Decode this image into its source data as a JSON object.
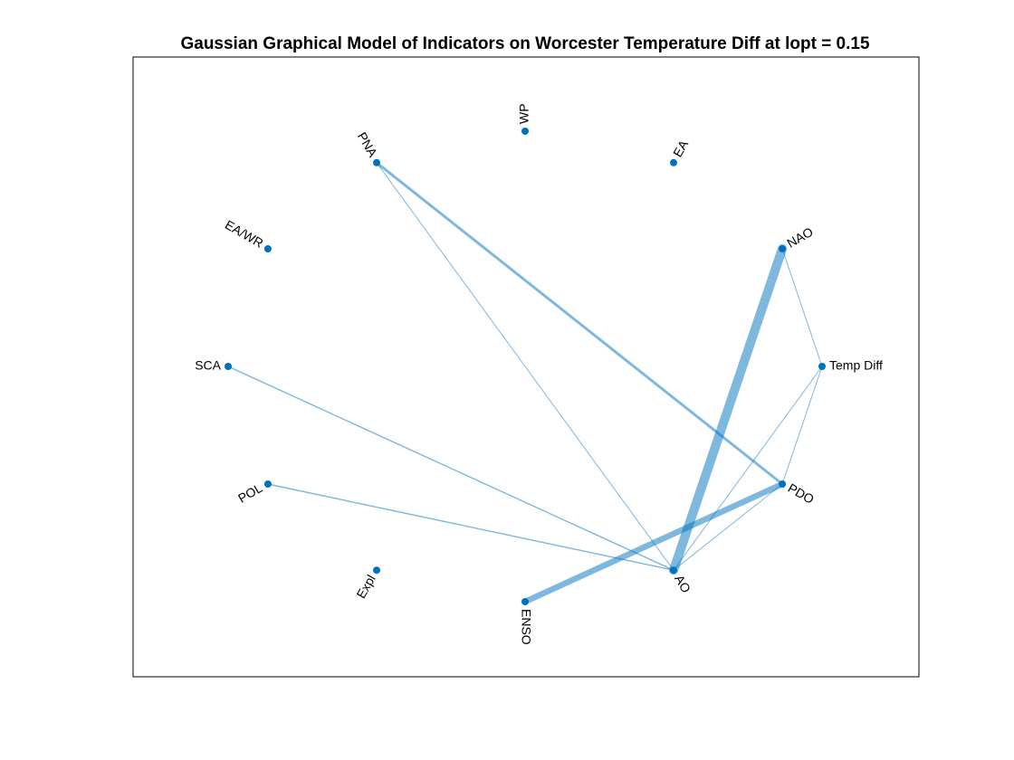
{
  "title": "Gaussian Graphical Model of Indicators on Worcester Temperature Diff at lopt = 0.15",
  "colors": {
    "node": "#0072BD",
    "edge": "#0072BD",
    "axes_border": "#000000",
    "background": "#ffffff"
  },
  "graph": {
    "layout": "circle",
    "nodes": [
      {
        "id": "temp-diff",
        "label": "Temp Diff"
      },
      {
        "id": "nao",
        "label": "NAO"
      },
      {
        "id": "ea",
        "label": "EA"
      },
      {
        "id": "wp",
        "label": "WP"
      },
      {
        "id": "pna",
        "label": "PNA"
      },
      {
        "id": "eawr",
        "label": "EA/WR"
      },
      {
        "id": "sca",
        "label": "SCA"
      },
      {
        "id": "pol",
        "label": "POL"
      },
      {
        "id": "expl",
        "label": "Expl"
      },
      {
        "id": "enso",
        "label": "ENSO"
      },
      {
        "id": "ao",
        "label": "AO"
      },
      {
        "id": "pdo",
        "label": "PDO"
      }
    ],
    "edges": [
      {
        "source": "nao",
        "target": "ao",
        "weight": 0.85
      },
      {
        "source": "enso",
        "target": "pdo",
        "weight": 0.55
      },
      {
        "source": "pna",
        "target": "pdo",
        "weight": 0.25
      },
      {
        "source": "sca",
        "target": "ao",
        "weight": 0.12
      },
      {
        "source": "pol",
        "target": "ao",
        "weight": 0.12
      },
      {
        "source": "pna",
        "target": "ao",
        "weight": 0.07
      },
      {
        "source": "nao",
        "target": "temp-diff",
        "weight": 0.07
      },
      {
        "source": "temp-diff",
        "target": "ao",
        "weight": 0.07
      },
      {
        "source": "temp-diff",
        "target": "pdo",
        "weight": 0.06
      },
      {
        "source": "pdo",
        "target": "ao",
        "weight": 0.06
      }
    ]
  }
}
